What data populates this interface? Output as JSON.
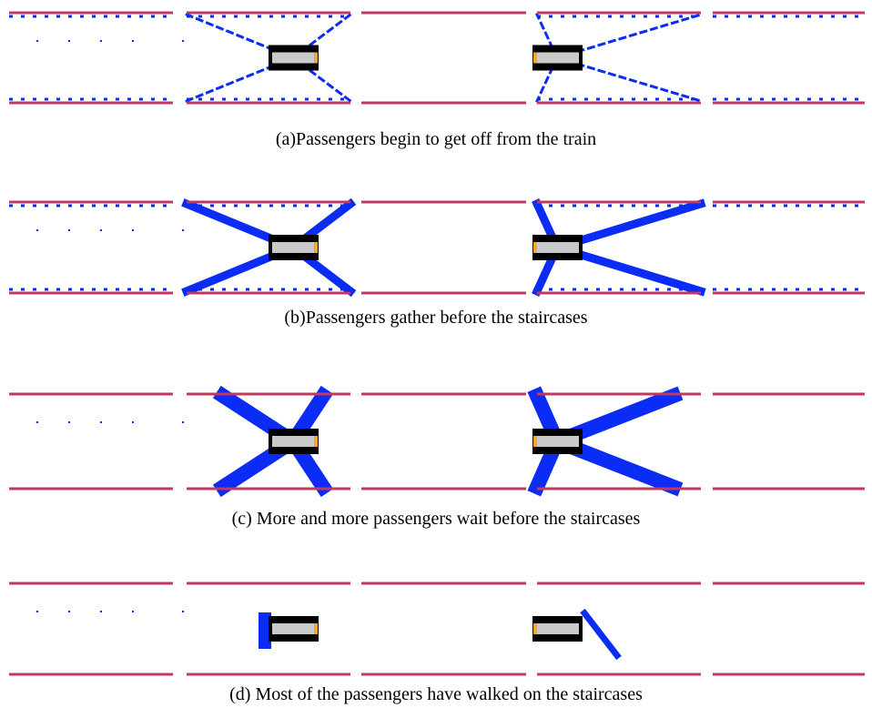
{
  "captions": [
    "(a)Passengers begin to get off from the train",
    "(b)Passengers gather before the staircases",
    "(c) More and more passengers wait before the staircases",
    "(d) Most of the passengers have walked on the staircases"
  ]
}
